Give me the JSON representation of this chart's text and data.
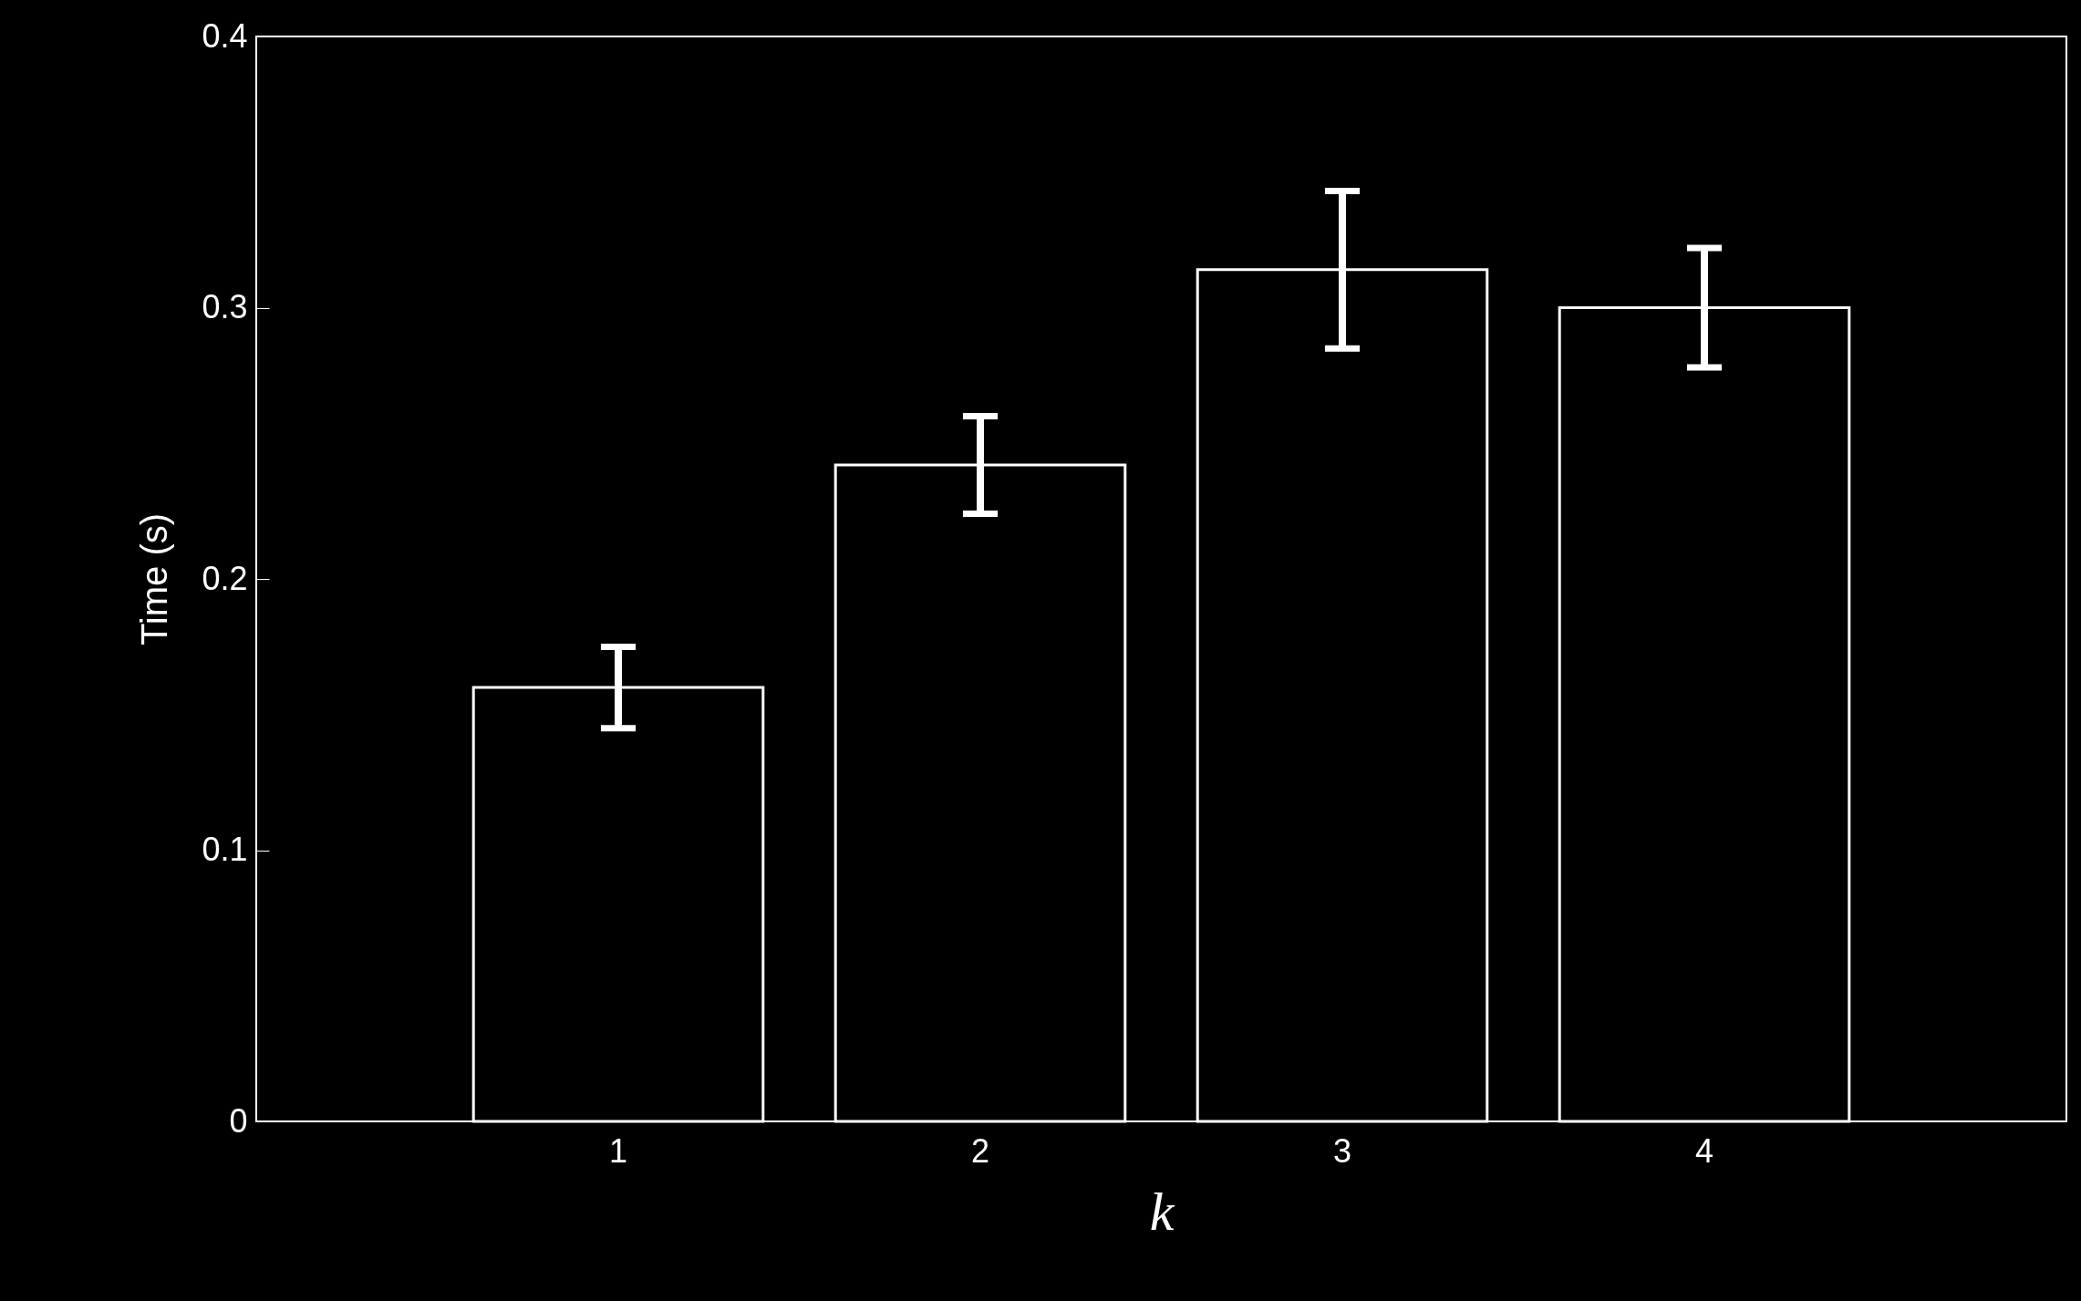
{
  "chart_data": {
    "type": "bar",
    "xlabel": "k",
    "ylabel": "Time (s)",
    "categories": [
      "1",
      "2",
      "3",
      "4"
    ],
    "values": [
      0.16,
      0.242,
      0.314,
      0.3
    ],
    "errors": [
      0.015,
      0.018,
      0.029,
      0.022
    ],
    "color": "#000000",
    "ylim": [
      0,
      0.4
    ],
    "yticks": [
      0,
      0.1,
      0.2,
      0.3,
      0.4
    ],
    "grid": false
  }
}
